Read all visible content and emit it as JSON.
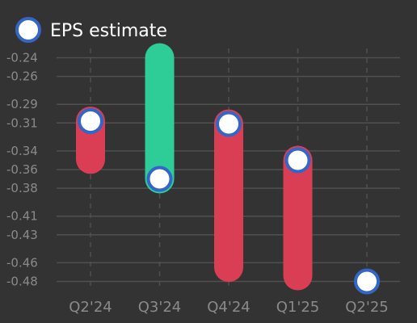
{
  "legend": {
    "label": "EPS estimate"
  },
  "colors": {
    "background": "#333333",
    "beat": "#2ecc96",
    "miss": "#d93e55",
    "marker_fill": "#ffffff",
    "marker_stroke": "#3466c7",
    "grid": "#505050",
    "tick_text": "#8a8a8a",
    "legend_text": "#ffffff"
  },
  "chart_data": {
    "type": "range-bar",
    "title": "",
    "xlabel": "",
    "ylabel": "",
    "legend_position": "top-left",
    "grid": true,
    "ylim": [
      -0.49,
      -0.23
    ],
    "y_ticks": [
      "-0.24",
      "-0.26",
      "-0.29",
      "-0.31",
      "-0.34",
      "-0.36",
      "-0.38",
      "-0.41",
      "-0.43",
      "-0.46",
      "-0.48"
    ],
    "categories": [
      "Q2'24",
      "Q3'24",
      "Q4'24",
      "Q1'25",
      "Q2'25"
    ],
    "series": [
      {
        "name": "EPS estimate",
        "values": [
          -0.308,
          -0.37,
          -0.311,
          -0.35,
          -0.48
        ]
      },
      {
        "values": [
          -0.349,
          -0.24,
          -0.465,
          -0.474,
          null
        ]
      }
    ]
  }
}
